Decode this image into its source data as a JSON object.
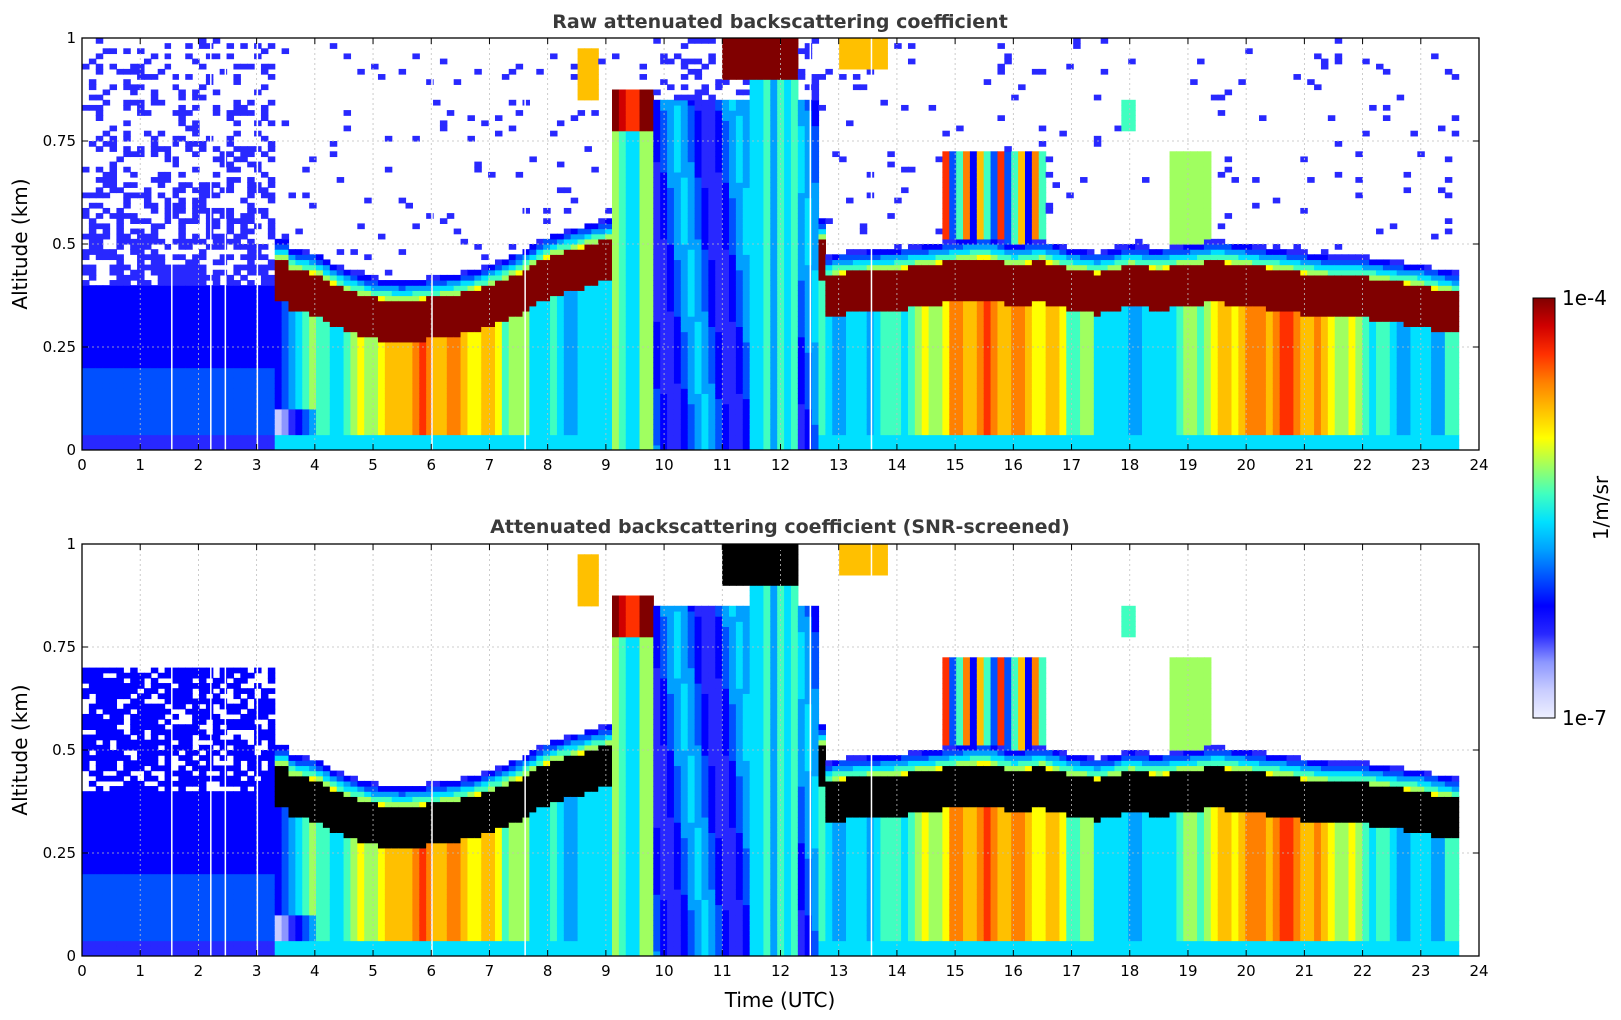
{
  "chart_data": [
    {
      "type": "heatmap",
      "id": "raw",
      "title": "Raw attenuated backscattering coefficient",
      "xlabel": "",
      "ylabel": "Altitude (km)",
      "xlim": [
        0,
        24
      ],
      "ylim": [
        0,
        1
      ],
      "xticks": [
        "0",
        "1",
        "2",
        "3",
        "4",
        "5",
        "6",
        "7",
        "8",
        "9",
        "10",
        "11",
        "12",
        "13",
        "14",
        "15",
        "16",
        "17",
        "18",
        "19",
        "20",
        "21",
        "22",
        "23",
        "24"
      ],
      "yticks": [
        "0",
        "0.25",
        "0.5",
        "0.75",
        "1"
      ],
      "grid": true,
      "data_end_hour": 23.65,
      "saturated_color": "#800000",
      "layer_top_km": {
        "x": [
          3.3,
          3.6,
          4.0,
          4.5,
          5.0,
          5.5,
          6.0,
          6.5,
          7.0,
          7.5,
          8.0,
          8.5,
          9.0,
          12.8,
          13.0,
          14.0,
          15.0,
          15.5,
          16.0,
          16.5,
          17.0,
          17.5,
          18.0,
          18.5,
          19.0,
          19.5,
          20.0,
          20.5,
          21.0,
          21.5,
          22.0,
          22.5,
          23.0,
          23.65
        ],
        "y": [
          0.46,
          0.44,
          0.43,
          0.39,
          0.37,
          0.36,
          0.37,
          0.38,
          0.4,
          0.43,
          0.47,
          0.49,
          0.51,
          0.42,
          0.43,
          0.44,
          0.46,
          0.47,
          0.45,
          0.46,
          0.44,
          0.43,
          0.45,
          0.44,
          0.45,
          0.46,
          0.45,
          0.44,
          0.43,
          0.42,
          0.42,
          0.41,
          0.4,
          0.38
        ]
      }
    },
    {
      "type": "heatmap",
      "id": "screened",
      "title": "Attenuated backscattering coefficient (SNR-screened)",
      "xlabel": "Time (UTC)",
      "ylabel": "Altitude (km)",
      "xlim": [
        0,
        24
      ],
      "ylim": [
        0,
        1
      ],
      "xticks": [
        "0",
        "1",
        "2",
        "3",
        "4",
        "5",
        "6",
        "7",
        "8",
        "9",
        "10",
        "11",
        "12",
        "13",
        "14",
        "15",
        "16",
        "17",
        "18",
        "19",
        "20",
        "21",
        "22",
        "23",
        "24"
      ],
      "yticks": [
        "0",
        "0.25",
        "0.5",
        "0.75",
        "1"
      ],
      "grid": true,
      "data_end_hour": 23.65,
      "saturated_color": "#000000"
    }
  ],
  "colorbar": {
    "label": "1/m/sr",
    "max_label": "1e-4",
    "min_label": "1e-7",
    "colors": [
      "#eef0ff",
      "#c8ccff",
      "#8c96ff",
      "#2828ff",
      "#0000ff",
      "#0050ff",
      "#00a0ff",
      "#00e0ff",
      "#40ffc0",
      "#a0ff60",
      "#ffff00",
      "#ffc000",
      "#ff8000",
      "#ff3000",
      "#d00000",
      "#800000"
    ]
  }
}
